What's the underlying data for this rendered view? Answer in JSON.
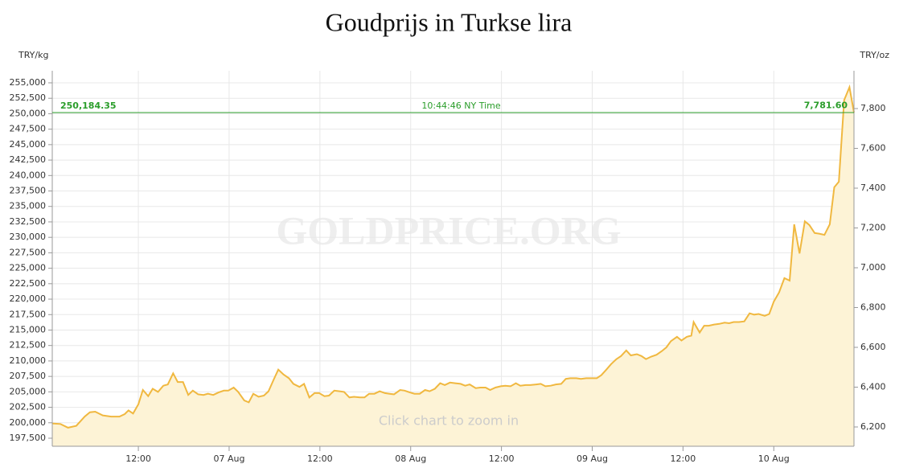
{
  "chart_data": {
    "type": "area",
    "title": "Goudprijs in Turkse lira",
    "y_label": "TRY/kg",
    "y2_label": "TRY/oz",
    "watermark": "GOLDPRICE.ORG",
    "hint": "Click chart to zoom in",
    "price_line": {
      "value": 250184.35,
      "label": "250,184.35"
    },
    "price_line_y2": {
      "value": 7781.6,
      "label": "7,781.60"
    },
    "price_time": "10:44:46 NY Time",
    "price_color": "#2a9d2a",
    "grid": true,
    "xlim": [
      0.62,
      106.6
    ],
    "xticks": [
      {
        "value": 12,
        "label": "12:00"
      },
      {
        "value": 24,
        "label": "07 Aug"
      },
      {
        "value": 36,
        "label": "12:00"
      },
      {
        "value": 48,
        "label": "08 Aug"
      },
      {
        "value": 60,
        "label": "12:00"
      },
      {
        "value": 72,
        "label": "09 Aug"
      },
      {
        "value": 84,
        "label": "12:00"
      },
      {
        "value": 96,
        "label": "10 Aug"
      }
    ],
    "ylim": [
      196200,
      256950
    ],
    "yticks": [
      {
        "value": 197500,
        "label": "197,500"
      },
      {
        "value": 200000,
        "label": "200,000"
      },
      {
        "value": 202500,
        "label": "202,500"
      },
      {
        "value": 205000,
        "label": "205,000"
      },
      {
        "value": 207500,
        "label": "207,500"
      },
      {
        "value": 210000,
        "label": "210,000"
      },
      {
        "value": 212500,
        "label": "212,500"
      },
      {
        "value": 215000,
        "label": "215,000"
      },
      {
        "value": 217500,
        "label": "217,500"
      },
      {
        "value": 220000,
        "label": "220,000"
      },
      {
        "value": 222500,
        "label": "222,500"
      },
      {
        "value": 225000,
        "label": "225,000"
      },
      {
        "value": 227500,
        "label": "227,500"
      },
      {
        "value": 230000,
        "label": "230,000"
      },
      {
        "value": 232500,
        "label": "232,500"
      },
      {
        "value": 235000,
        "label": "235,000"
      },
      {
        "value": 237500,
        "label": "237,500"
      },
      {
        "value": 240000,
        "label": "240,000"
      },
      {
        "value": 242500,
        "label": "242,500"
      },
      {
        "value": 245000,
        "label": "245,000"
      },
      {
        "value": 247500,
        "label": "247,500"
      },
      {
        "value": 250000,
        "label": "250,000"
      },
      {
        "value": 252500,
        "label": "252,500"
      },
      {
        "value": 255000,
        "label": "255,000"
      }
    ],
    "y2lim": [
      6103,
      7990
    ],
    "y2ticks": [
      {
        "value": 6200,
        "label": "6,200"
      },
      {
        "value": 6400,
        "label": "6,400"
      },
      {
        "value": 6600,
        "label": "6,600"
      },
      {
        "value": 6800,
        "label": "6,800"
      },
      {
        "value": 7000,
        "label": "7,000"
      },
      {
        "value": 7200,
        "label": "7,200"
      },
      {
        "value": 7400,
        "label": "7,400"
      },
      {
        "value": 7600,
        "label": "7,600"
      },
      {
        "value": 7800,
        "label": "7,800"
      }
    ],
    "x": [
      0.6,
      1.7,
      2.7,
      3.8,
      4.9,
      5.6,
      6.3,
      7.3,
      8.4,
      9.5,
      10.2,
      10.7,
      11.3,
      12.0,
      12.6,
      13.3,
      13.9,
      14.6,
      15.3,
      15.9,
      16.6,
      17.2,
      17.9,
      18.6,
      19.2,
      19.9,
      20.6,
      21.2,
      21.9,
      22.6,
      23.3,
      23.9,
      24.6,
      25.2,
      26.0,
      26.6,
      27.2,
      27.9,
      28.6,
      29.2,
      29.9,
      30.5,
      31.2,
      31.9,
      32.5,
      33.3,
      33.9,
      34.6,
      35.3,
      35.9,
      36.6,
      37.2,
      37.9,
      38.6,
      39.2,
      39.9,
      40.5,
      41.3,
      41.9,
      42.5,
      43.2,
      43.9,
      44.6,
      45.2,
      45.8,
      46.6,
      47.2,
      47.9,
      48.5,
      49.2,
      49.9,
      50.5,
      51.2,
      51.9,
      52.5,
      53.2,
      53.9,
      54.6,
      55.2,
      55.8,
      56.6,
      57.2,
      57.9,
      58.5,
      59.2,
      59.9,
      60.5,
      61.2,
      61.9,
      62.5,
      63.2,
      63.8,
      64.6,
      65.2,
      65.8,
      66.5,
      67.2,
      67.9,
      68.5,
      69.1,
      69.9,
      70.5,
      71.2,
      71.8,
      72.6,
      73.2,
      73.8,
      74.5,
      75.2,
      75.8,
      76.5,
      77.1,
      77.9,
      78.5,
      79.1,
      79.8,
      80.5,
      81.2,
      81.8,
      82.4,
      83.2,
      83.8,
      84.5,
      85.1,
      85.4,
      86.2,
      86.8,
      87.4,
      88.1,
      88.8,
      89.5,
      90.1,
      90.7,
      91.4,
      92.1,
      92.8,
      93.4,
      94.0,
      94.8,
      95.4,
      96.0,
      96.7,
      97.4,
      98.1,
      98.7,
      99.4,
      100.1,
      100.7,
      101.4,
      102.0,
      102.7,
      103.4,
      104.0,
      104.6,
      105.3,
      106.0,
      106.6
    ],
    "series": [
      {
        "name": "TRY/kg",
        "color": "#f0b840",
        "fill": "#fdf3d6",
        "values": [
          199900,
          199800,
          199200,
          199500,
          201000,
          201700,
          201800,
          201200,
          201000,
          201000,
          201400,
          202000,
          201500,
          203000,
          205300,
          204300,
          205500,
          205000,
          206000,
          206200,
          208000,
          206600,
          206600,
          204500,
          205200,
          204600,
          204500,
          204700,
          204500,
          204900,
          205200,
          205200,
          205700,
          205000,
          203600,
          203300,
          204700,
          204200,
          204400,
          205100,
          207000,
          208600,
          207800,
          207200,
          206300,
          205800,
          206300,
          204100,
          204800,
          204800,
          204300,
          204400,
          205200,
          205100,
          205000,
          204100,
          204200,
          204100,
          204100,
          204700,
          204700,
          205100,
          204800,
          204700,
          204600,
          205300,
          205200,
          204900,
          204700,
          204700,
          205300,
          205100,
          205500,
          206400,
          206100,
          206500,
          206400,
          206300,
          206000,
          206200,
          205600,
          205700,
          205700,
          205300,
          205700,
          205900,
          206000,
          205900,
          206400,
          206000,
          206100,
          206100,
          206200,
          206300,
          205900,
          206000,
          206200,
          206300,
          207100,
          207200,
          207200,
          207100,
          207200,
          207200,
          207200,
          207700,
          208500,
          209500,
          210300,
          210800,
          211700,
          210900,
          211100,
          210800,
          210300,
          210700,
          211000,
          211600,
          212200,
          213200,
          213900,
          213300,
          213900,
          214100,
          216300,
          214600,
          215700,
          215700,
          215900,
          216000,
          216200,
          216100,
          216300,
          216300,
          216400,
          217700,
          217500,
          217600,
          217300,
          217600,
          219600,
          221100,
          223400,
          223000,
          232100,
          227400,
          232600,
          232000,
          230700,
          230600,
          230400,
          232100,
          238100,
          239000,
          252200,
          254300,
          250184
        ]
      }
    ]
  }
}
